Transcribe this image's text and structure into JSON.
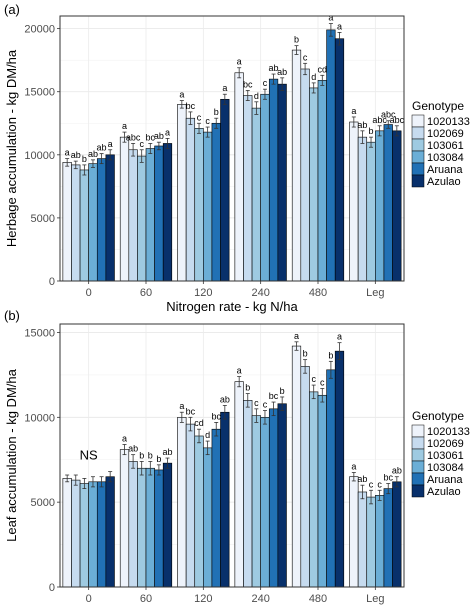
{
  "colors": [
    "#eef3fb",
    "#c6dbef",
    "#9ecae1",
    "#6baed6",
    "#2171b5",
    "#08306b"
  ],
  "chart_data": [
    {
      "panel": "(a)",
      "type": "bar",
      "xlabel": "Nitrogen rate - kg N/ha",
      "ylabel": "Herbage accumulation - kg DM/ha",
      "ylim": [
        0,
        21000
      ],
      "yticks": [
        0,
        5000,
        10000,
        15000,
        20000
      ],
      "ytick_labels": [
        "0",
        "5000",
        "10000",
        "15000",
        "20000"
      ],
      "grid": true,
      "legend_title": "Genotype",
      "legend_position": "right",
      "categories": [
        "0",
        "60",
        "120",
        "240",
        "480",
        "Leg"
      ],
      "series": [
        {
          "name": "1020133",
          "values": [
            9400,
            11400,
            14000,
            16500,
            18300,
            12600
          ],
          "err": [
            300,
            400,
            300,
            400,
            350,
            400
          ]
        },
        {
          "name": "102069",
          "values": [
            9200,
            10400,
            12900,
            14700,
            16800,
            11400
          ],
          "err": [
            300,
            500,
            500,
            400,
            450,
            500
          ]
        },
        {
          "name": "103061",
          "values": [
            8800,
            9900,
            12100,
            13700,
            15300,
            11000
          ],
          "err": [
            400,
            500,
            400,
            500,
            400,
            400
          ]
        },
        {
          "name": "103084",
          "values": [
            9300,
            10500,
            11800,
            14800,
            15900,
            11900
          ],
          "err": [
            300,
            400,
            400,
            400,
            400,
            400
          ]
        },
        {
          "name": "Aruana",
          "values": [
            9700,
            10700,
            12500,
            16000,
            19900,
            12400
          ],
          "err": [
            400,
            300,
            400,
            400,
            500,
            300
          ]
        },
        {
          "name": "Azulao",
          "values": [
            10000,
            10900,
            14400,
            15600,
            19200,
            11900
          ],
          "err": [
            400,
            400,
            400,
            500,
            500,
            400
          ]
        }
      ],
      "letters": [
        [
          "a",
          "a",
          "a",
          "a",
          "b",
          "a"
        ],
        [
          "ab",
          "abc",
          "bc",
          "bc",
          "c",
          "ab"
        ],
        [
          "b",
          "c",
          "c",
          "d",
          "d",
          "b"
        ],
        [
          "ab",
          "bc",
          "c",
          "c",
          "cd",
          "abc"
        ],
        [
          "ab",
          "ab",
          "b",
          "ab",
          "a",
          "abc"
        ],
        [
          "a",
          "a",
          "a",
          "ab",
          "a",
          "abc"
        ]
      ]
    },
    {
      "panel": "(b)",
      "type": "bar",
      "xlabel": "Nitrogen rate - kg N/ha",
      "ylabel": "Leaf accumulation - kg DM/ha",
      "ylim": [
        0,
        15500
      ],
      "yticks": [
        0,
        5000,
        10000,
        15000
      ],
      "ytick_labels": [
        "0",
        "5000",
        "10000",
        "15000"
      ],
      "grid": true,
      "legend_title": "Genotype",
      "legend_position": "right",
      "categories": [
        "0",
        "60",
        "120",
        "240",
        "480",
        "Leg"
      ],
      "series": [
        {
          "name": "1020133",
          "values": [
            6400,
            8100,
            10000,
            12100,
            14200,
            6500
          ],
          "err": [
            200,
            300,
            300,
            300,
            250,
            250
          ]
        },
        {
          "name": "102069",
          "values": [
            6300,
            7400,
            9600,
            11000,
            13000,
            5600
          ],
          "err": [
            300,
            400,
            400,
            400,
            400,
            400
          ]
        },
        {
          "name": "103061",
          "values": [
            6100,
            7000,
            8900,
            10100,
            11500,
            5300
          ],
          "err": [
            300,
            400,
            400,
            400,
            400,
            400
          ]
        },
        {
          "name": "103084",
          "values": [
            6200,
            7000,
            8200,
            10000,
            11300,
            5400
          ],
          "err": [
            300,
            400,
            400,
            400,
            400,
            300
          ]
        },
        {
          "name": "Aruana",
          "values": [
            6200,
            6900,
            9300,
            10500,
            12800,
            5800
          ],
          "err": [
            300,
            300,
            400,
            400,
            500,
            300
          ]
        },
        {
          "name": "Azulao",
          "values": [
            6500,
            7300,
            10300,
            10800,
            13900,
            6200
          ],
          "err": [
            300,
            300,
            400,
            400,
            500,
            300
          ]
        }
      ],
      "letters": [
        [
          "",
          "a",
          "a",
          "a",
          "a",
          "a"
        ],
        [
          "",
          "ab",
          "bc",
          "b",
          "b",
          "ab"
        ],
        [
          "",
          "b",
          "cd",
          "c",
          "c",
          "c"
        ],
        [
          "",
          "b",
          "d",
          "c",
          "c",
          "c"
        ],
        [
          "",
          "b",
          "bc",
          "bc",
          "b",
          "bc"
        ],
        [
          "",
          "ab",
          "ab",
          "b",
          "a",
          "ab"
        ]
      ],
      "annotations": [
        {
          "text": "NS",
          "category": "0"
        }
      ]
    }
  ]
}
